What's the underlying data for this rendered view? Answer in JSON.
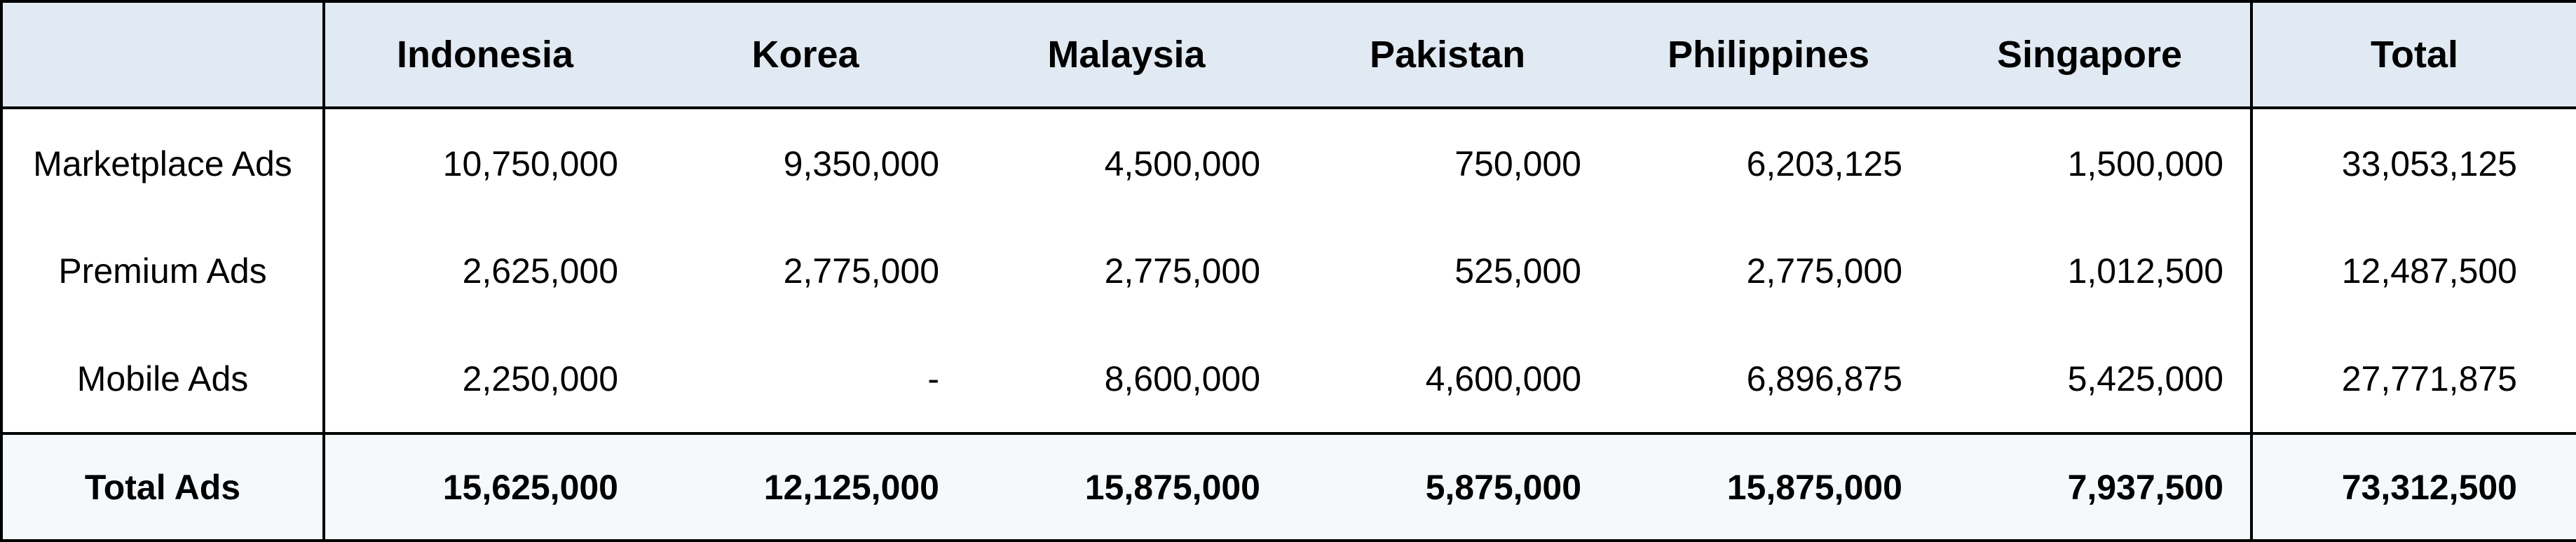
{
  "table": {
    "corner_label": "",
    "columns": [
      "Indonesia",
      "Korea",
      "Malaysia",
      "Pakistan",
      "Philippines",
      "Singapore"
    ],
    "total_column_label": "Total",
    "rows": [
      {
        "label": "Marketplace Ads",
        "values": [
          "10,750,000",
          "9,350,000",
          "4,500,000",
          "750,000",
          "6,203,125",
          "1,500,000"
        ],
        "total": "33,053,125"
      },
      {
        "label": "Premium Ads",
        "values": [
          "2,625,000",
          "2,775,000",
          "2,775,000",
          "525,000",
          "2,775,000",
          "1,012,500"
        ],
        "total": "12,487,500"
      },
      {
        "label": "Mobile Ads",
        "values": [
          "2,250,000",
          "-",
          "8,600,000",
          "4,600,000",
          "6,896,875",
          "5,425,000"
        ],
        "total": "27,771,875"
      }
    ],
    "footer": {
      "label": "Total Ads",
      "values": [
        "15,625,000",
        "12,125,000",
        "15,875,000",
        "5,875,000",
        "15,875,000",
        "7,937,500"
      ],
      "total": "73,312,500"
    }
  },
  "colors": {
    "header_background": "#e1eaf3",
    "footer_background": "#f6f9fc",
    "border": "#000000"
  }
}
